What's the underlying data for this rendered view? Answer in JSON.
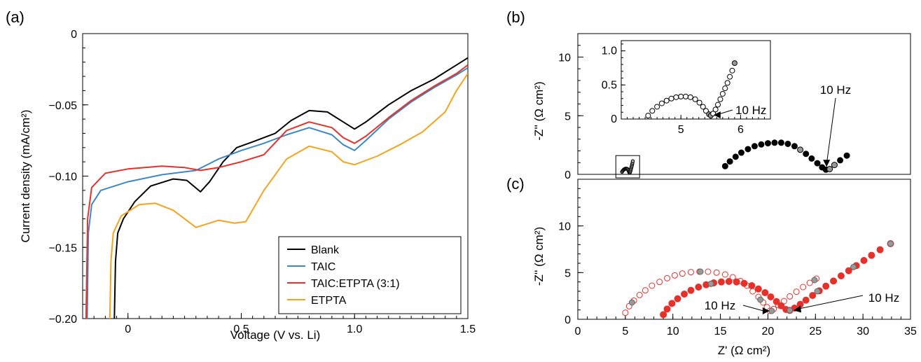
{
  "panels": {
    "a": "(a)",
    "b": "(b)",
    "c": "(c)"
  },
  "chart_data": [
    {
      "panel": "(a)",
      "type": "line",
      "xlabel": "Voltage (V vs. Li)",
      "ylabel": "Current density (mA/cm²)",
      "xlim": [
        -0.2,
        1.5
      ],
      "ylim": [
        -0.2,
        0
      ],
      "x_ticks": [
        0,
        0.5,
        1.0,
        1.5
      ],
      "x_tick_labels": [
        "0",
        "0.5",
        "1.0",
        "1.5"
      ],
      "y_ticks": [
        0,
        -0.05,
        -0.1,
        -0.15,
        -0.2
      ],
      "y_tick_labels": [
        "0",
        "−0.05",
        "−0.10",
        "−0.15",
        "−0.20"
      ],
      "legend_position": "bottom-right",
      "series": [
        {
          "name": "Blank",
          "color": "#000000",
          "points": [
            [
              -0.06,
              -0.2
            ],
            [
              -0.055,
              -0.16
            ],
            [
              -0.045,
              -0.14
            ],
            [
              -0.02,
              -0.13
            ],
            [
              0.03,
              -0.118
            ],
            [
              0.1,
              -0.107
            ],
            [
              0.2,
              -0.102
            ],
            [
              0.26,
              -0.103
            ],
            [
              0.32,
              -0.111
            ],
            [
              0.36,
              -0.104
            ],
            [
              0.42,
              -0.09
            ],
            [
              0.48,
              -0.08
            ],
            [
              0.55,
              -0.076
            ],
            [
              0.65,
              -0.07
            ],
            [
              0.72,
              -0.061
            ],
            [
              0.8,
              -0.054
            ],
            [
              0.88,
              -0.055
            ],
            [
              0.95,
              -0.062
            ],
            [
              1.0,
              -0.067
            ],
            [
              1.05,
              -0.062
            ],
            [
              1.15,
              -0.05
            ],
            [
              1.25,
              -0.04
            ],
            [
              1.35,
              -0.032
            ],
            [
              1.45,
              -0.022
            ],
            [
              1.5,
              -0.017
            ]
          ]
        },
        {
          "name": "TAIC",
          "color": "#3b88c4",
          "points": [
            [
              -0.18,
              -0.2
            ],
            [
              -0.175,
              -0.14
            ],
            [
              -0.16,
              -0.12
            ],
            [
              -0.12,
              -0.11
            ],
            [
              0.0,
              -0.104
            ],
            [
              0.15,
              -0.099
            ],
            [
              0.3,
              -0.096
            ],
            [
              0.4,
              -0.088
            ],
            [
              0.5,
              -0.082
            ],
            [
              0.6,
              -0.077
            ],
            [
              0.7,
              -0.071
            ],
            [
              0.8,
              -0.066
            ],
            [
              0.9,
              -0.071
            ],
            [
              0.95,
              -0.078
            ],
            [
              1.0,
              -0.082
            ],
            [
              1.05,
              -0.075
            ],
            [
              1.15,
              -0.06
            ],
            [
              1.25,
              -0.048
            ],
            [
              1.35,
              -0.038
            ],
            [
              1.45,
              -0.029
            ],
            [
              1.5,
              -0.024
            ]
          ]
        },
        {
          "name": "TAIC:ETPTA (3:1)",
          "color": "#e8302a",
          "points": [
            [
              -0.185,
              -0.2
            ],
            [
              -0.178,
              -0.13
            ],
            [
              -0.16,
              -0.108
            ],
            [
              -0.1,
              -0.098
            ],
            [
              0.0,
              -0.095
            ],
            [
              0.15,
              -0.093
            ],
            [
              0.25,
              -0.094
            ],
            [
              0.32,
              -0.096
            ],
            [
              0.4,
              -0.094
            ],
            [
              0.5,
              -0.09
            ],
            [
              0.6,
              -0.085
            ],
            [
              0.7,
              -0.068
            ],
            [
              0.8,
              -0.062
            ],
            [
              0.9,
              -0.066
            ],
            [
              0.95,
              -0.073
            ],
            [
              1.0,
              -0.077
            ],
            [
              1.05,
              -0.072
            ],
            [
              1.15,
              -0.059
            ],
            [
              1.25,
              -0.047
            ],
            [
              1.35,
              -0.037
            ],
            [
              1.45,
              -0.028
            ],
            [
              1.5,
              -0.022
            ]
          ]
        },
        {
          "name": "ETPTA",
          "color": "#f7a21b",
          "points": [
            [
              -0.08,
              -0.2
            ],
            [
              -0.075,
              -0.16
            ],
            [
              -0.065,
              -0.14
            ],
            [
              -0.03,
              -0.128
            ],
            [
              0.05,
              -0.12
            ],
            [
              0.12,
              -0.119
            ],
            [
              0.2,
              -0.124
            ],
            [
              0.3,
              -0.136
            ],
            [
              0.4,
              -0.131
            ],
            [
              0.47,
              -0.133
            ],
            [
              0.52,
              -0.132
            ],
            [
              0.6,
              -0.11
            ],
            [
              0.7,
              -0.088
            ],
            [
              0.8,
              -0.079
            ],
            [
              0.9,
              -0.083
            ],
            [
              0.95,
              -0.09
            ],
            [
              1.0,
              -0.092
            ],
            [
              1.1,
              -0.086
            ],
            [
              1.2,
              -0.078
            ],
            [
              1.3,
              -0.069
            ],
            [
              1.4,
              -0.055
            ],
            [
              1.45,
              -0.04
            ],
            [
              1.5,
              -0.028
            ]
          ]
        }
      ]
    },
    {
      "panel": "(b)",
      "type": "scatter",
      "xlabel": "",
      "ylabel": "-Z'' (Ω cm²)",
      "xlim": [
        0,
        35
      ],
      "ylim": [
        0,
        12
      ],
      "y_ticks": [
        0,
        5,
        10
      ],
      "y_tick_labels": [
        "0",
        "5",
        "10"
      ],
      "annotation": "10 Hz",
      "series": [
        {
          "style": "filled-black",
          "color": "#000000",
          "points": [
            [
              15.5,
              0.7
            ],
            [
              16.0,
              1.1
            ],
            [
              16.6,
              1.5
            ],
            [
              17.2,
              1.85
            ],
            [
              17.9,
              2.15
            ],
            [
              18.6,
              2.4
            ],
            [
              19.3,
              2.55
            ],
            [
              20.0,
              2.65
            ],
            [
              20.7,
              2.7
            ],
            [
              21.4,
              2.7
            ],
            [
              22.1,
              2.6
            ],
            [
              22.8,
              2.4
            ],
            [
              23.4,
              2.1
            ],
            [
              24.0,
              1.75
            ],
            [
              24.6,
              1.35
            ],
            [
              25.2,
              0.95
            ],
            [
              25.7,
              0.6
            ],
            [
              26.1,
              0.4
            ],
            [
              26.5,
              0.45
            ],
            [
              27.0,
              0.8
            ],
            [
              27.6,
              1.2
            ],
            [
              28.3,
              1.6
            ]
          ]
        }
      ],
      "inset": {
        "xlim": [
          4.0,
          6.5
        ],
        "ylim": [
          0,
          1.15
        ],
        "x_ticks": [
          5,
          6
        ],
        "x_tick_labels": [
          "5",
          "6"
        ],
        "y_ticks": [
          0,
          0.5,
          1.0
        ],
        "y_tick_labels": [
          "0",
          "0.5",
          "1.0"
        ],
        "annotation": "10 Hz",
        "points": [
          [
            4.45,
            0.05
          ],
          [
            4.52,
            0.12
          ],
          [
            4.6,
            0.18
          ],
          [
            4.68,
            0.23
          ],
          [
            4.76,
            0.27
          ],
          [
            4.84,
            0.3
          ],
          [
            4.92,
            0.32
          ],
          [
            5.0,
            0.33
          ],
          [
            5.08,
            0.33
          ],
          [
            5.16,
            0.32
          ],
          [
            5.24,
            0.29
          ],
          [
            5.31,
            0.24
          ],
          [
            5.37,
            0.18
          ],
          [
            5.42,
            0.12
          ],
          [
            5.47,
            0.07
          ],
          [
            5.5,
            0.05
          ],
          [
            5.54,
            0.08
          ],
          [
            5.58,
            0.14
          ],
          [
            5.62,
            0.21
          ],
          [
            5.66,
            0.29
          ],
          [
            5.7,
            0.37
          ],
          [
            5.74,
            0.45
          ],
          [
            5.78,
            0.53
          ],
          [
            5.82,
            0.62
          ],
          [
            5.86,
            0.71
          ],
          [
            5.9,
            0.82
          ]
        ]
      }
    },
    {
      "panel": "(c)",
      "type": "scatter",
      "xlabel": "Z' (Ω cm²)",
      "ylabel": "-Z'' (Ω cm²)",
      "xlim": [
        0,
        35
      ],
      "ylim": [
        0,
        15
      ],
      "x_ticks": [
        0,
        5,
        10,
        15,
        20,
        25,
        30,
        35
      ],
      "x_tick_labels": [
        "0",
        "5",
        "10",
        "15",
        "20",
        "25",
        "30",
        "35"
      ],
      "y_ticks": [
        0,
        5,
        10
      ],
      "y_tick_labels": [
        "0",
        "5",
        "10"
      ],
      "annotations": [
        "10 Hz",
        "10 Hz"
      ],
      "series": [
        {
          "style": "open-red",
          "color": "#e8302a",
          "points": [
            [
              5.0,
              0.7
            ],
            [
              5.4,
              1.4
            ],
            [
              5.9,
              2.0
            ],
            [
              6.5,
              2.6
            ],
            [
              7.1,
              3.1
            ],
            [
              7.8,
              3.6
            ],
            [
              8.6,
              4.0
            ],
            [
              9.4,
              4.4
            ],
            [
              10.2,
              4.7
            ],
            [
              11.0,
              4.9
            ],
            [
              11.9,
              5.05
            ],
            [
              12.8,
              5.1
            ],
            [
              13.7,
              5.1
            ],
            [
              14.6,
              5.0
            ],
            [
              15.5,
              4.8
            ],
            [
              16.3,
              4.5
            ],
            [
              17.1,
              4.1
            ],
            [
              17.8,
              3.6
            ],
            [
              18.4,
              3.0
            ],
            [
              19.0,
              2.4
            ],
            [
              19.5,
              1.8
            ],
            [
              19.9,
              1.3
            ],
            [
              20.2,
              0.9
            ],
            [
              20.6,
              1.1
            ],
            [
              21.1,
              1.5
            ],
            [
              21.7,
              1.95
            ],
            [
              22.3,
              2.45
            ],
            [
              23.0,
              2.95
            ],
            [
              23.7,
              3.45
            ],
            [
              24.4,
              3.9
            ],
            [
              25.1,
              4.35
            ]
          ]
        },
        {
          "style": "filled-red",
          "color": "#e8302a",
          "points": [
            [
              9.0,
              0.5
            ],
            [
              9.4,
              1.1
            ],
            [
              9.9,
              1.7
            ],
            [
              10.5,
              2.2
            ],
            [
              11.2,
              2.7
            ],
            [
              11.9,
              3.1
            ],
            [
              12.7,
              3.45
            ],
            [
              13.5,
              3.7
            ],
            [
              14.3,
              3.9
            ],
            [
              15.1,
              4.0
            ],
            [
              15.9,
              4.05
            ],
            [
              16.7,
              4.0
            ],
            [
              17.5,
              3.85
            ],
            [
              18.3,
              3.6
            ],
            [
              19.0,
              3.25
            ],
            [
              19.7,
              2.85
            ],
            [
              20.3,
              2.4
            ],
            [
              20.9,
              1.9
            ],
            [
              21.4,
              1.45
            ],
            [
              21.9,
              1.05
            ],
            [
              22.3,
              0.95
            ],
            [
              22.8,
              1.2
            ],
            [
              23.4,
              1.6
            ],
            [
              24.0,
              2.05
            ],
            [
              24.7,
              2.55
            ],
            [
              25.4,
              3.05
            ],
            [
              26.1,
              3.55
            ],
            [
              26.9,
              4.1
            ],
            [
              27.7,
              4.65
            ],
            [
              28.5,
              5.2
            ],
            [
              29.3,
              5.75
            ],
            [
              30.1,
              6.3
            ],
            [
              30.9,
              6.85
            ],
            [
              31.8,
              7.45
            ],
            [
              32.9,
              8.1
            ]
          ]
        }
      ],
      "gray_markers": [
        [
          5.7,
          1.8
        ],
        [
          12.9,
          5.1
        ],
        [
          19.2,
          2.1
        ],
        [
          20.4,
          0.9
        ],
        [
          24.9,
          4.2
        ],
        [
          14.0,
          3.8
        ],
        [
          22.3,
          0.95
        ],
        [
          25.2,
          3.0
        ],
        [
          32.9,
          8.1
        ],
        [
          29.0,
          5.6
        ]
      ]
    }
  ]
}
